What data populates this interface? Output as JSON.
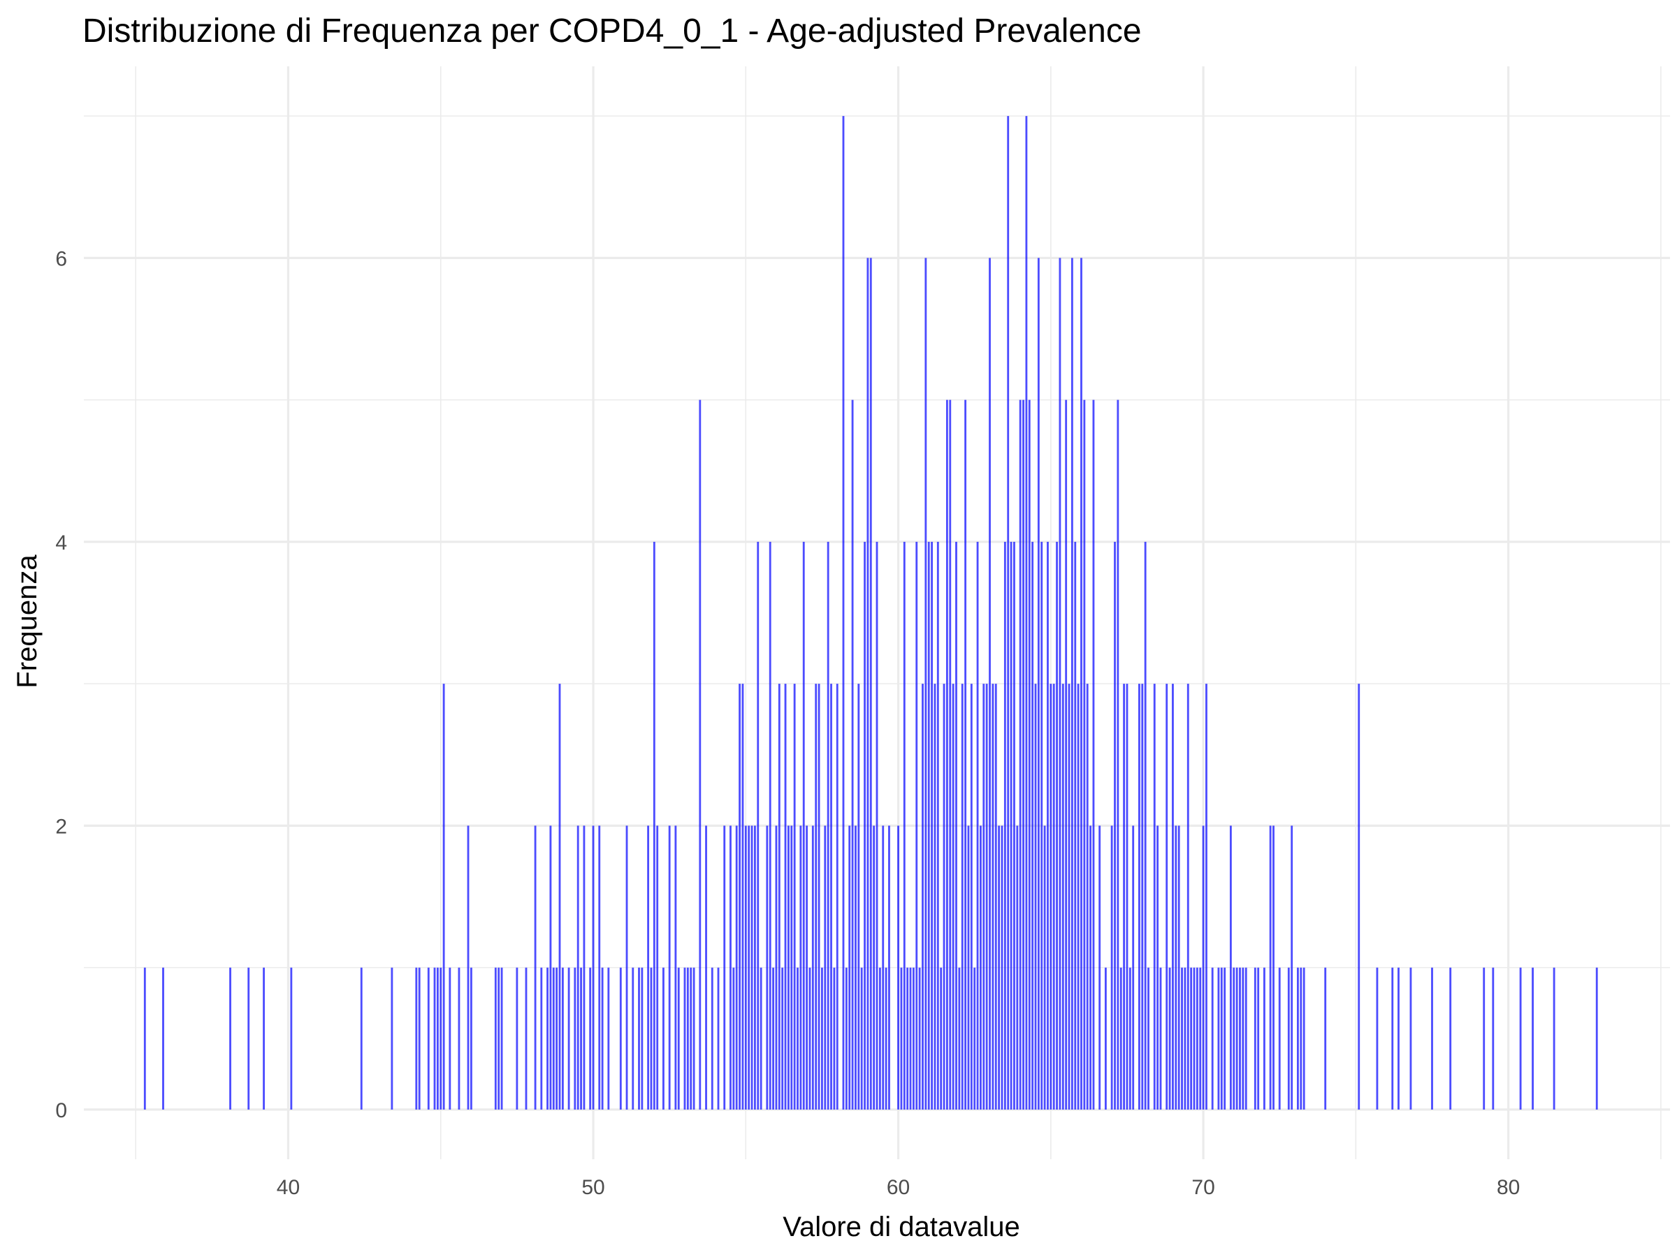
{
  "chart_data": {
    "type": "bar",
    "title": "Distribuzione di Frequenza per COPD4_0_1 - Age-adjusted Prevalence",
    "xlabel": "Valore di datavalue",
    "ylabel": "Frequenza",
    "xlim": [
      33.3,
      85.3
    ],
    "ylim": [
      -0.35,
      7.35
    ],
    "x_ticks": [
      40,
      50,
      60,
      70,
      80
    ],
    "y_ticks": [
      0,
      2,
      4,
      6
    ],
    "grid": true,
    "legend": "none",
    "color": "#0000ff",
    "values": [
      [
        35.3,
        1
      ],
      [
        35.9,
        1
      ],
      [
        38.1,
        1
      ],
      [
        38.7,
        1
      ],
      [
        39.2,
        1
      ],
      [
        40.1,
        1
      ],
      [
        42.4,
        1
      ],
      [
        43.4,
        1
      ],
      [
        44.2,
        1
      ],
      [
        44.3,
        1
      ],
      [
        44.6,
        1
      ],
      [
        44.8,
        1
      ],
      [
        44.9,
        1
      ],
      [
        45.0,
        1
      ],
      [
        45.1,
        3
      ],
      [
        45.3,
        1
      ],
      [
        45.6,
        1
      ],
      [
        45.9,
        2
      ],
      [
        46.0,
        1
      ],
      [
        46.8,
        1
      ],
      [
        46.9,
        1
      ],
      [
        47.0,
        1
      ],
      [
        47.5,
        1
      ],
      [
        47.8,
        1
      ],
      [
        48.1,
        2
      ],
      [
        48.3,
        1
      ],
      [
        48.5,
        1
      ],
      [
        48.6,
        2
      ],
      [
        48.7,
        1
      ],
      [
        48.8,
        1
      ],
      [
        48.9,
        3
      ],
      [
        49.0,
        1
      ],
      [
        49.2,
        1
      ],
      [
        49.4,
        1
      ],
      [
        49.5,
        2
      ],
      [
        49.6,
        1
      ],
      [
        49.7,
        2
      ],
      [
        49.9,
        1
      ],
      [
        50.0,
        2
      ],
      [
        50.2,
        2
      ],
      [
        50.3,
        1
      ],
      [
        50.5,
        1
      ],
      [
        50.9,
        1
      ],
      [
        51.1,
        2
      ],
      [
        51.3,
        1
      ],
      [
        51.5,
        1
      ],
      [
        51.6,
        1
      ],
      [
        51.8,
        2
      ],
      [
        51.9,
        1
      ],
      [
        52.0,
        4
      ],
      [
        52.1,
        2
      ],
      [
        52.3,
        1
      ],
      [
        52.5,
        2
      ],
      [
        52.7,
        2
      ],
      [
        52.8,
        1
      ],
      [
        53.0,
        1
      ],
      [
        53.1,
        1
      ],
      [
        53.2,
        1
      ],
      [
        53.3,
        1
      ],
      [
        53.5,
        5
      ],
      [
        53.7,
        2
      ],
      [
        53.9,
        1
      ],
      [
        54.1,
        1
      ],
      [
        54.3,
        2
      ],
      [
        54.5,
        2
      ],
      [
        54.6,
        1
      ],
      [
        54.7,
        2
      ],
      [
        54.8,
        3
      ],
      [
        54.9,
        3
      ],
      [
        55.0,
        2
      ],
      [
        55.1,
        2
      ],
      [
        55.2,
        2
      ],
      [
        55.3,
        2
      ],
      [
        55.4,
        4
      ],
      [
        55.5,
        1
      ],
      [
        55.7,
        2
      ],
      [
        55.8,
        4
      ],
      [
        55.9,
        1
      ],
      [
        56.0,
        2
      ],
      [
        56.1,
        3
      ],
      [
        56.2,
        1
      ],
      [
        56.3,
        3
      ],
      [
        56.4,
        2
      ],
      [
        56.5,
        2
      ],
      [
        56.6,
        3
      ],
      [
        56.7,
        1
      ],
      [
        56.8,
        2
      ],
      [
        56.9,
        4
      ],
      [
        57.0,
        2
      ],
      [
        57.1,
        1
      ],
      [
        57.2,
        2
      ],
      [
        57.3,
        3
      ],
      [
        57.4,
        3
      ],
      [
        57.5,
        1
      ],
      [
        57.6,
        2
      ],
      [
        57.7,
        4
      ],
      [
        57.8,
        3
      ],
      [
        57.9,
        1
      ],
      [
        58.0,
        3
      ],
      [
        58.2,
        7
      ],
      [
        58.3,
        1
      ],
      [
        58.4,
        2
      ],
      [
        58.5,
        5
      ],
      [
        58.6,
        2
      ],
      [
        58.7,
        3
      ],
      [
        58.8,
        1
      ],
      [
        58.9,
        4
      ],
      [
        59.0,
        6
      ],
      [
        59.1,
        6
      ],
      [
        59.2,
        2
      ],
      [
        59.3,
        4
      ],
      [
        59.4,
        1
      ],
      [
        59.5,
        2
      ],
      [
        59.6,
        1
      ],
      [
        59.7,
        2
      ],
      [
        60.0,
        2
      ],
      [
        60.1,
        1
      ],
      [
        60.2,
        4
      ],
      [
        60.3,
        1
      ],
      [
        60.4,
        1
      ],
      [
        60.5,
        1
      ],
      [
        60.6,
        4
      ],
      [
        60.7,
        1
      ],
      [
        60.8,
        3
      ],
      [
        60.9,
        6
      ],
      [
        61.0,
        4
      ],
      [
        61.1,
        4
      ],
      [
        61.2,
        3
      ],
      [
        61.3,
        4
      ],
      [
        61.4,
        1
      ],
      [
        61.5,
        3
      ],
      [
        61.6,
        5
      ],
      [
        61.7,
        5
      ],
      [
        61.8,
        3
      ],
      [
        61.9,
        4
      ],
      [
        62.0,
        1
      ],
      [
        62.1,
        3
      ],
      [
        62.2,
        5
      ],
      [
        62.3,
        2
      ],
      [
        62.4,
        3
      ],
      [
        62.5,
        1
      ],
      [
        62.6,
        4
      ],
      [
        62.7,
        2
      ],
      [
        62.8,
        3
      ],
      [
        62.9,
        3
      ],
      [
        63.0,
        6
      ],
      [
        63.1,
        3
      ],
      [
        63.2,
        3
      ],
      [
        63.3,
        2
      ],
      [
        63.4,
        2
      ],
      [
        63.5,
        4
      ],
      [
        63.6,
        7
      ],
      [
        63.7,
        4
      ],
      [
        63.8,
        4
      ],
      [
        63.9,
        2
      ],
      [
        64.0,
        5
      ],
      [
        64.1,
        5
      ],
      [
        64.2,
        7
      ],
      [
        64.3,
        5
      ],
      [
        64.4,
        4
      ],
      [
        64.5,
        3
      ],
      [
        64.6,
        6
      ],
      [
        64.7,
        4
      ],
      [
        64.8,
        2
      ],
      [
        64.9,
        4
      ],
      [
        65.0,
        3
      ],
      [
        65.1,
        3
      ],
      [
        65.2,
        4
      ],
      [
        65.3,
        6
      ],
      [
        65.4,
        3
      ],
      [
        65.5,
        5
      ],
      [
        65.6,
        3
      ],
      [
        65.7,
        6
      ],
      [
        65.8,
        4
      ],
      [
        65.9,
        3
      ],
      [
        66.0,
        6
      ],
      [
        66.1,
        5
      ],
      [
        66.2,
        3
      ],
      [
        66.3,
        2
      ],
      [
        66.4,
        5
      ],
      [
        66.6,
        2
      ],
      [
        66.8,
        1
      ],
      [
        67.0,
        2
      ],
      [
        67.1,
        4
      ],
      [
        67.2,
        5
      ],
      [
        67.3,
        1
      ],
      [
        67.4,
        3
      ],
      [
        67.5,
        3
      ],
      [
        67.6,
        1
      ],
      [
        67.7,
        2
      ],
      [
        67.9,
        3
      ],
      [
        68.0,
        3
      ],
      [
        68.1,
        4
      ],
      [
        68.2,
        1
      ],
      [
        68.4,
        3
      ],
      [
        68.5,
        2
      ],
      [
        68.6,
        1
      ],
      [
        68.8,
        3
      ],
      [
        68.9,
        1
      ],
      [
        69.0,
        3
      ],
      [
        69.1,
        2
      ],
      [
        69.2,
        2
      ],
      [
        69.3,
        1
      ],
      [
        69.4,
        1
      ],
      [
        69.5,
        3
      ],
      [
        69.6,
        1
      ],
      [
        69.7,
        1
      ],
      [
        69.8,
        1
      ],
      [
        69.9,
        1
      ],
      [
        70.0,
        2
      ],
      [
        70.1,
        3
      ],
      [
        70.3,
        1
      ],
      [
        70.5,
        1
      ],
      [
        70.6,
        1
      ],
      [
        70.7,
        1
      ],
      [
        70.9,
        2
      ],
      [
        71.0,
        1
      ],
      [
        71.1,
        1
      ],
      [
        71.2,
        1
      ],
      [
        71.3,
        1
      ],
      [
        71.4,
        1
      ],
      [
        71.7,
        1
      ],
      [
        71.8,
        1
      ],
      [
        72.0,
        1
      ],
      [
        72.2,
        2
      ],
      [
        72.3,
        2
      ],
      [
        72.5,
        1
      ],
      [
        72.8,
        1
      ],
      [
        72.9,
        2
      ],
      [
        73.1,
        1
      ],
      [
        73.2,
        1
      ],
      [
        73.3,
        1
      ],
      [
        74.0,
        1
      ],
      [
        75.1,
        3
      ],
      [
        75.7,
        1
      ],
      [
        76.2,
        1
      ],
      [
        76.4,
        1
      ],
      [
        76.8,
        1
      ],
      [
        77.5,
        1
      ],
      [
        78.1,
        1
      ],
      [
        79.2,
        1
      ],
      [
        79.5,
        1
      ],
      [
        80.4,
        1
      ],
      [
        80.8,
        1
      ],
      [
        81.5,
        1
      ],
      [
        82.9,
        1
      ]
    ]
  }
}
